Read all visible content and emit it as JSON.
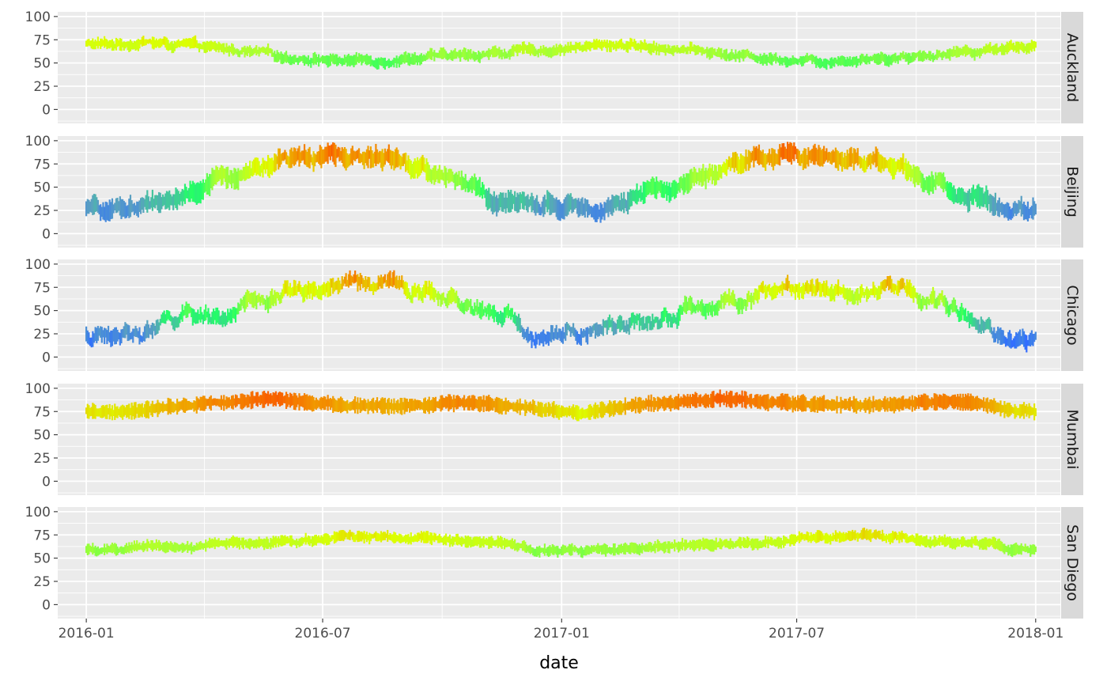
{
  "chart_data": {
    "type": "line",
    "chart_kind": "faceted daily range segments (min to max per day), colored by temperature",
    "xlabel": "date",
    "ylabel": "",
    "x_range": [
      "2015-12-10",
      "2018-01-20"
    ],
    "x_ticks": [
      "2016-01",
      "2016-07",
      "2017-01",
      "2017-07",
      "2018-01"
    ],
    "x_tick_dates": [
      "2016-01-01",
      "2016-07-01",
      "2017-01-01",
      "2017-07-01",
      "2018-01-01"
    ],
    "y_range": [
      -15,
      105
    ],
    "y_ticks": [
      0,
      25,
      50,
      75,
      100
    ],
    "grid": true,
    "facet_direction": "rows",
    "facet_label_position": "right",
    "panel_background": "#ebebeb",
    "strip_background": "#d9d9d9",
    "color_scale": {
      "type": "rainbow",
      "value_range": [
        -5,
        100
      ],
      "stops": [
        {
          "value": -5,
          "color": "#c026ff"
        },
        {
          "value": 15,
          "color": "#2f6fff"
        },
        {
          "value": 30,
          "color": "#5aa0c0"
        },
        {
          "value": 45,
          "color": "#22ff66"
        },
        {
          "value": 62,
          "color": "#aaff33"
        },
        {
          "value": 72,
          "color": "#ddff00"
        },
        {
          "value": 82,
          "color": "#f0a000"
        },
        {
          "value": 95,
          "color": "#ff2a00"
        }
      ]
    },
    "facets": [
      {
        "name": "Auckland",
        "monthly_mean": [
          {
            "date": "2016-01-15",
            "value": 70
          },
          {
            "date": "2016-02-15",
            "value": 72
          },
          {
            "date": "2016-03-15",
            "value": 69
          },
          {
            "date": "2016-04-15",
            "value": 65
          },
          {
            "date": "2016-05-15",
            "value": 60
          },
          {
            "date": "2016-06-15",
            "value": 55
          },
          {
            "date": "2016-07-15",
            "value": 53
          },
          {
            "date": "2016-08-15",
            "value": 53
          },
          {
            "date": "2016-09-15",
            "value": 56
          },
          {
            "date": "2016-10-15",
            "value": 58
          },
          {
            "date": "2016-11-15",
            "value": 61
          },
          {
            "date": "2016-12-15",
            "value": 64
          },
          {
            "date": "2017-01-15",
            "value": 67
          },
          {
            "date": "2017-02-15",
            "value": 70
          },
          {
            "date": "2017-03-15",
            "value": 67
          },
          {
            "date": "2017-04-15",
            "value": 63
          },
          {
            "date": "2017-05-15",
            "value": 58
          },
          {
            "date": "2017-06-15",
            "value": 55
          },
          {
            "date": "2017-07-15",
            "value": 52
          },
          {
            "date": "2017-08-15",
            "value": 54
          },
          {
            "date": "2017-09-15",
            "value": 56
          },
          {
            "date": "2017-10-15",
            "value": 59
          },
          {
            "date": "2017-11-15",
            "value": 63
          },
          {
            "date": "2017-12-15",
            "value": 68
          }
        ],
        "daily_range": 10,
        "noise": 4
      },
      {
        "name": "Beijing",
        "monthly_mean": [
          {
            "date": "2016-01-15",
            "value": 25
          },
          {
            "date": "2016-02-15",
            "value": 30
          },
          {
            "date": "2016-03-15",
            "value": 42
          },
          {
            "date": "2016-04-15",
            "value": 60
          },
          {
            "date": "2016-05-15",
            "value": 70
          },
          {
            "date": "2016-06-15",
            "value": 80
          },
          {
            "date": "2016-07-15",
            "value": 85
          },
          {
            "date": "2016-08-15",
            "value": 82
          },
          {
            "date": "2016-09-15",
            "value": 70
          },
          {
            "date": "2016-10-15",
            "value": 55
          },
          {
            "date": "2016-11-15",
            "value": 35
          },
          {
            "date": "2016-12-15",
            "value": 30
          },
          {
            "date": "2017-01-15",
            "value": 28
          },
          {
            "date": "2017-02-15",
            "value": 33
          },
          {
            "date": "2017-03-15",
            "value": 45
          },
          {
            "date": "2017-04-15",
            "value": 60
          },
          {
            "date": "2017-05-15",
            "value": 75
          },
          {
            "date": "2017-06-15",
            "value": 82
          },
          {
            "date": "2017-07-15",
            "value": 85
          },
          {
            "date": "2017-08-15",
            "value": 80
          },
          {
            "date": "2017-09-15",
            "value": 72
          },
          {
            "date": "2017-10-15",
            "value": 55
          },
          {
            "date": "2017-11-15",
            "value": 38
          },
          {
            "date": "2017-12-15",
            "value": 28
          }
        ],
        "daily_range": 18,
        "noise": 7
      },
      {
        "name": "Chicago",
        "monthly_mean": [
          {
            "date": "2016-01-15",
            "value": 22
          },
          {
            "date": "2016-02-15",
            "value": 28
          },
          {
            "date": "2016-03-15",
            "value": 42
          },
          {
            "date": "2016-04-15",
            "value": 45
          },
          {
            "date": "2016-05-15",
            "value": 58
          },
          {
            "date": "2016-06-15",
            "value": 74
          },
          {
            "date": "2016-07-15",
            "value": 78
          },
          {
            "date": "2016-08-15",
            "value": 78
          },
          {
            "date": "2016-09-15",
            "value": 70
          },
          {
            "date": "2016-10-15",
            "value": 55
          },
          {
            "date": "2016-11-15",
            "value": 45
          },
          {
            "date": "2016-12-15",
            "value": 20
          },
          {
            "date": "2017-01-15",
            "value": 28
          },
          {
            "date": "2017-02-15",
            "value": 35
          },
          {
            "date": "2017-03-15",
            "value": 38
          },
          {
            "date": "2017-04-15",
            "value": 52
          },
          {
            "date": "2017-05-15",
            "value": 60
          },
          {
            "date": "2017-06-15",
            "value": 75
          },
          {
            "date": "2017-07-15",
            "value": 78
          },
          {
            "date": "2017-08-15",
            "value": 72
          },
          {
            "date": "2017-09-15",
            "value": 74
          },
          {
            "date": "2017-10-15",
            "value": 60
          },
          {
            "date": "2017-11-15",
            "value": 40
          },
          {
            "date": "2017-12-15",
            "value": 20
          }
        ],
        "daily_range": 14,
        "noise": 9
      },
      {
        "name": "Mumbai",
        "monthly_mean": [
          {
            "date": "2016-01-15",
            "value": 75
          },
          {
            "date": "2016-02-15",
            "value": 77
          },
          {
            "date": "2016-03-15",
            "value": 82
          },
          {
            "date": "2016-04-15",
            "value": 86
          },
          {
            "date": "2016-05-15",
            "value": 88
          },
          {
            "date": "2016-06-15",
            "value": 86
          },
          {
            "date": "2016-07-15",
            "value": 82
          },
          {
            "date": "2016-08-15",
            "value": 81
          },
          {
            "date": "2016-09-15",
            "value": 82
          },
          {
            "date": "2016-10-15",
            "value": 85
          },
          {
            "date": "2016-11-15",
            "value": 82
          },
          {
            "date": "2016-12-15",
            "value": 78
          },
          {
            "date": "2017-01-15",
            "value": 74
          },
          {
            "date": "2017-02-15",
            "value": 80
          },
          {
            "date": "2017-03-15",
            "value": 84
          },
          {
            "date": "2017-04-15",
            "value": 86
          },
          {
            "date": "2017-05-15",
            "value": 88
          },
          {
            "date": "2017-06-15",
            "value": 85
          },
          {
            "date": "2017-07-15",
            "value": 82
          },
          {
            "date": "2017-08-15",
            "value": 82
          },
          {
            "date": "2017-09-15",
            "value": 83
          },
          {
            "date": "2017-10-15",
            "value": 86
          },
          {
            "date": "2017-11-15",
            "value": 84
          },
          {
            "date": "2017-12-15",
            "value": 76
          }
        ],
        "daily_range": 14,
        "noise": 2
      },
      {
        "name": "San Diego",
        "monthly_mean": [
          {
            "date": "2016-01-15",
            "value": 58
          },
          {
            "date": "2016-02-15",
            "value": 62
          },
          {
            "date": "2016-03-15",
            "value": 62
          },
          {
            "date": "2016-04-15",
            "value": 65
          },
          {
            "date": "2016-05-15",
            "value": 66
          },
          {
            "date": "2016-06-15",
            "value": 68
          },
          {
            "date": "2016-07-15",
            "value": 72
          },
          {
            "date": "2016-08-15",
            "value": 73
          },
          {
            "date": "2016-09-15",
            "value": 73
          },
          {
            "date": "2016-10-15",
            "value": 70
          },
          {
            "date": "2016-11-15",
            "value": 65
          },
          {
            "date": "2016-12-15",
            "value": 58
          },
          {
            "date": "2017-01-15",
            "value": 57
          },
          {
            "date": "2017-02-15",
            "value": 58
          },
          {
            "date": "2017-03-15",
            "value": 62
          },
          {
            "date": "2017-04-15",
            "value": 64
          },
          {
            "date": "2017-05-15",
            "value": 66
          },
          {
            "date": "2017-06-15",
            "value": 68
          },
          {
            "date": "2017-07-15",
            "value": 73
          },
          {
            "date": "2017-08-15",
            "value": 74
          },
          {
            "date": "2017-09-15",
            "value": 72
          },
          {
            "date": "2017-10-15",
            "value": 68
          },
          {
            "date": "2017-11-15",
            "value": 66
          },
          {
            "date": "2017-12-15",
            "value": 60
          }
        ],
        "daily_range": 10,
        "noise": 3
      }
    ]
  }
}
